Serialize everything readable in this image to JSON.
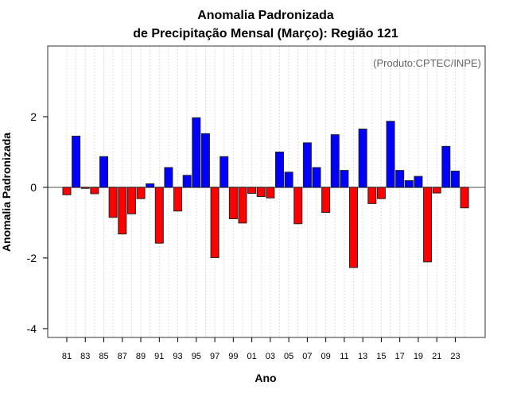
{
  "chart_data": {
    "type": "bar",
    "title_line1": "Anomalia Padronizada",
    "title_line2": "de Precipitação Mensal (Março): Região 121",
    "annotation": "(Produto:CPTEC/INPE)",
    "xlabel": "Ano",
    "ylabel": "Anomalia Padronizada",
    "ylim": [
      -4.25,
      4.0
    ],
    "yticks": [
      -4,
      -2,
      0,
      2
    ],
    "xtick_labels": [
      "81",
      "83",
      "85",
      "87",
      "89",
      "91",
      "93",
      "95",
      "97",
      "99",
      "01",
      "03",
      "05",
      "07",
      "09",
      "11",
      "13",
      "15",
      "17",
      "19",
      "21",
      "23"
    ],
    "years": [
      1981,
      1982,
      1983,
      1984,
      1985,
      1986,
      1987,
      1988,
      1989,
      1990,
      1991,
      1992,
      1993,
      1994,
      1995,
      1996,
      1997,
      1998,
      1999,
      2000,
      2001,
      2002,
      2003,
      2004,
      2005,
      2006,
      2007,
      2008,
      2009,
      2010,
      2011,
      2012,
      2013,
      2014,
      2015,
      2016,
      2017,
      2018,
      2019,
      2020,
      2021,
      2022,
      2023,
      2024
    ],
    "values": [
      -0.21,
      1.45,
      -0.03,
      -0.18,
      0.87,
      -0.85,
      -1.32,
      -0.75,
      -0.32,
      0.1,
      -1.58,
      0.56,
      -0.67,
      0.34,
      1.97,
      1.52,
      -1.99,
      0.87,
      -0.89,
      -1.01,
      -0.17,
      -0.26,
      -0.3,
      1.0,
      0.43,
      -1.03,
      1.26,
      0.56,
      -0.71,
      1.49,
      0.48,
      -2.27,
      1.65,
      -0.46,
      -0.32,
      1.87,
      0.48,
      0.19,
      0.31,
      -2.11,
      -0.16,
      1.16,
      0.46,
      -0.58
    ],
    "grid": "vertical dotted per year",
    "colors": {
      "positive": "#0000ff",
      "negative": "#ff0000"
    }
  }
}
